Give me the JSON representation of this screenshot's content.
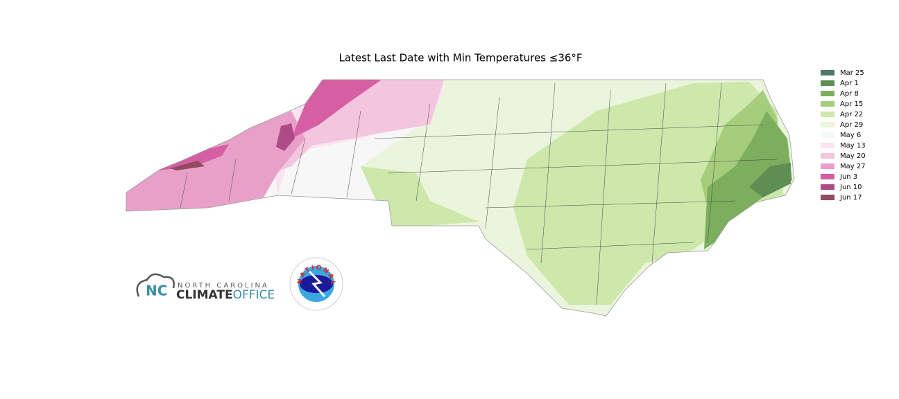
{
  "title": "Latest Last Date with Min Temperatures ≤36°F",
  "legend": [
    {
      "label": "Mar 25",
      "color": "#4d786a"
    },
    {
      "label": "Apr 1",
      "color": "#5f8e55"
    },
    {
      "label": "Apr 8",
      "color": "#7cae5e"
    },
    {
      "label": "Apr 15",
      "color": "#a5cd7c"
    },
    {
      "label": "Apr 22",
      "color": "#cde8aa"
    },
    {
      "label": "Apr 29",
      "color": "#ebf5dd"
    },
    {
      "label": "May 6",
      "color": "#f7f7f7"
    },
    {
      "label": "May 13",
      "color": "#fbe3ef"
    },
    {
      "label": "May 20",
      "color": "#f4c5df"
    },
    {
      "label": "May 27",
      "color": "#e8a0c8"
    },
    {
      "label": "Jun 3",
      "color": "#d55fa2"
    },
    {
      "label": "Jun 10",
      "color": "#ad4b86"
    },
    {
      "label": "Jun 17",
      "color": "#934a60"
    }
  ],
  "logos": {
    "climate_office": {
      "state": "NORTH CAROLINA",
      "climate": "CLIMATE",
      "office": "OFFICE"
    },
    "nws": "NATIONAL WEATHER SERVICE"
  }
}
